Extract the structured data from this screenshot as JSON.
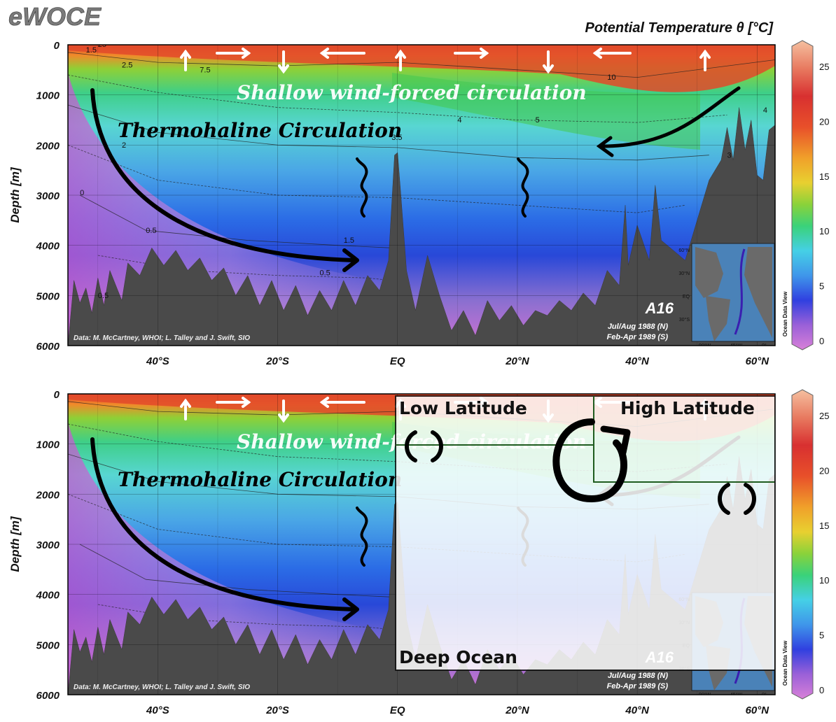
{
  "brand": "eWOCE",
  "figure_title": "Potential Temperature θ [°C]",
  "colorbar_side_label": "Ocean Data View",
  "chart_data": [
    {
      "type": "heatmap",
      "panel": "top",
      "section": "A16",
      "cruise_dates": [
        "Jul/Aug 1988 (N)",
        "Feb-Apr 1989 (S)"
      ],
      "credit": "Data: M. McCartney, WHOI; L. Talley and J. Swift, SIO",
      "xlabel": "",
      "ylabel": "Depth [m]",
      "x_ticks": [
        "40°S",
        "20°S",
        "EQ",
        "20°N",
        "40°N",
        "60°N"
      ],
      "x_tick_values": [
        -40,
        -20,
        0,
        20,
        40,
        60
      ],
      "xlim": [
        -55,
        63
      ],
      "y_ticks": [
        "0",
        "1000",
        "2000",
        "3000",
        "4000",
        "5000",
        "6000"
      ],
      "y_tick_values": [
        0,
        1000,
        2000,
        3000,
        4000,
        5000,
        6000
      ],
      "ylim": [
        6000,
        0
      ],
      "colorbar_ticks": [
        "0",
        "5",
        "10",
        "15",
        "20",
        "25"
      ],
      "colorbar_values": [
        0,
        5,
        10,
        15,
        20,
        25
      ],
      "contour_labels": [
        {
          "text": "25",
          "lat": -50,
          "depth": 40
        },
        {
          "text": "1.5",
          "lat": -52,
          "depth": 150
        },
        {
          "text": "2.5",
          "lat": -46,
          "depth": 450
        },
        {
          "text": "7.5",
          "lat": -33,
          "depth": 550
        },
        {
          "text": "10",
          "lat": 35,
          "depth": 700
        },
        {
          "text": "4",
          "lat": 10,
          "depth": 1550
        },
        {
          "text": "5",
          "lat": 23,
          "depth": 1550
        },
        {
          "text": "3.5",
          "lat": -1,
          "depth": 1900
        },
        {
          "text": "2",
          "lat": -46,
          "depth": 2050
        },
        {
          "text": "0",
          "lat": -53,
          "depth": 3000
        },
        {
          "text": "0.5",
          "lat": -42,
          "depth": 3750
        },
        {
          "text": "1.5",
          "lat": -9,
          "depth": 3950
        },
        {
          "text": "0.5",
          "lat": -13,
          "depth": 4600
        },
        {
          "text": "0.5",
          "lat": -50,
          "depth": 5050
        },
        {
          "text": "3",
          "lat": 55,
          "depth": 2250
        },
        {
          "text": "4",
          "lat": 61,
          "depth": 1350
        }
      ],
      "annotations": [
        "Shallow wind-forced circulation",
        "Thermohaline Circulation"
      ]
    },
    {
      "type": "heatmap",
      "panel": "bottom",
      "section": "A16",
      "cruise_dates": [
        "Jul/Aug 1988 (N)",
        "Feb-Apr 1989 (S)"
      ],
      "credit": "Data: M. McCartney, WHOI; L. Talley and J. Swift, SIO",
      "xlabel": "",
      "ylabel": "Depth [m]",
      "x_ticks": [
        "40°S",
        "20°S",
        "EQ",
        "20°N",
        "40°N",
        "60°N"
      ],
      "x_tick_values": [
        -40,
        -20,
        0,
        20,
        40,
        60
      ],
      "xlim": [
        -55,
        63
      ],
      "y_ticks": [
        "0",
        "1000",
        "2000",
        "3000",
        "4000",
        "5000",
        "6000"
      ],
      "y_tick_values": [
        0,
        1000,
        2000,
        3000,
        4000,
        5000,
        6000
      ],
      "ylim": [
        6000,
        0
      ],
      "colorbar_ticks": [
        "0",
        "5",
        "10",
        "15",
        "20",
        "25"
      ],
      "colorbar_values": [
        0,
        5,
        10,
        15,
        20,
        25
      ],
      "box_labels": [
        "Low Latitude",
        "High Latitude",
        "Deep Ocean"
      ],
      "annotations": [
        "Shallow wind-forced circulation",
        "Thermohaline Circulation"
      ]
    }
  ]
}
